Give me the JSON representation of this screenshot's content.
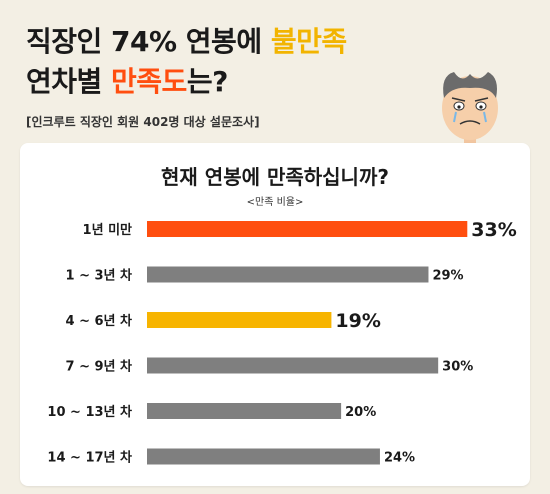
{
  "headline": {
    "line1_prefix": "직장인 74% 연봉에 ",
    "line1_highlight": "불만족",
    "line2_prefix": "연차별 ",
    "line2_highlight": "만족도",
    "line2_suffix": "는?"
  },
  "source": "[인크루트 직장인 회원 402명 대상 설문조사]",
  "colors": {
    "background": "#f3efe4",
    "highlight_bar": "#ff4e0f",
    "secondary_highlight_bar": "#f7b400",
    "default_bar": "#7f7f7f"
  },
  "chart_data": {
    "type": "bar",
    "orientation": "horizontal",
    "title": "현재 연봉에 만족하십니까?",
    "subtitle": "<만족 비율>",
    "categories": [
      "1년 미만",
      "1 ~ 3년 차",
      "4 ~ 6년 차",
      "7 ~ 9년 차",
      "10 ~ 13년 차",
      "14 ~ 17년 차"
    ],
    "values": [
      33,
      29,
      19,
      30,
      20,
      24
    ],
    "value_suffix": "%",
    "bar_colors": [
      "#ff4e0f",
      "#7f7f7f",
      "#f7b400",
      "#7f7f7f",
      "#7f7f7f",
      "#7f7f7f"
    ],
    "emphasized": [
      true,
      false,
      true,
      false,
      false,
      false
    ],
    "xlim": [
      0,
      34
    ],
    "grid": false,
    "legend": "none"
  }
}
